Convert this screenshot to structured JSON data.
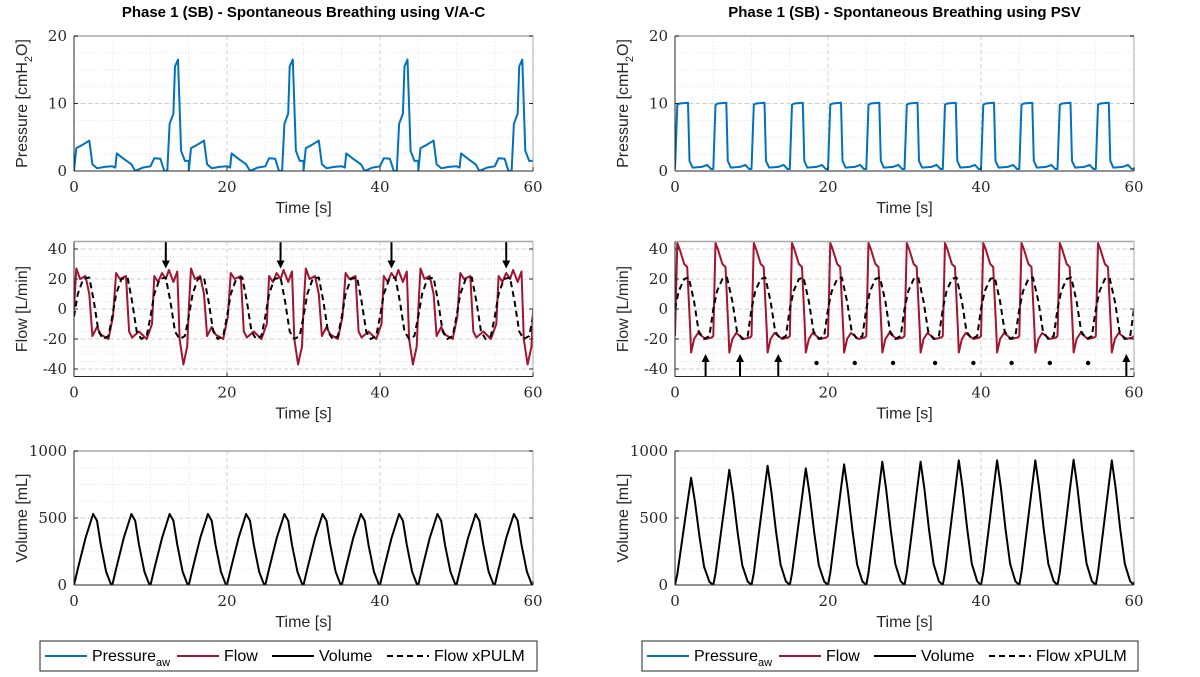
{
  "legend": [
    {
      "label": "Pressure",
      "sub": "aw",
      "color": "#0072BD",
      "dash": false
    },
    {
      "label": "Flow",
      "sub": "",
      "color": "#A2142F",
      "dash": false
    },
    {
      "label": "Volume",
      "sub": "",
      "color": "#000000",
      "dash": false
    },
    {
      "label": "Flow xPULM",
      "sub": "",
      "color": "#000000",
      "dash": true
    }
  ],
  "chart_data": [
    {
      "type": "line",
      "title": "Phase 1 (SB) - Spontaneous Breathing using V/A-C",
      "xlabel": "Time [s]",
      "ylabel": "Pressure [cmH",
      "ylabel_sub": "2",
      "ylabel_end": "O]",
      "xlim": [
        0,
        60
      ],
      "ylim": [
        0,
        20
      ],
      "xticks": [
        0,
        20,
        40,
        60
      ],
      "yticks": [
        0,
        10,
        20
      ],
      "grid": true,
      "series": [
        {
          "name": "Pressure_aw",
          "color": "#0072BD",
          "dash": false,
          "starts": [
            0,
            15,
            30,
            45
          ],
          "template": [
            [
              0,
              0
            ],
            [
              0.3,
              3.4
            ],
            [
              1,
              3.8
            ],
            [
              2,
              4.5
            ],
            [
              2.4,
              1
            ],
            [
              3,
              0.4
            ],
            [
              4,
              0.6
            ],
            [
              5,
              0.7
            ],
            [
              5.4,
              0.5
            ],
            [
              5.6,
              2.6
            ],
            [
              6.5,
              1.8
            ],
            [
              7.5,
              1
            ],
            [
              8,
              0
            ],
            [
              9,
              0.5
            ],
            [
              10,
              0.7
            ],
            [
              10.5,
              1.9
            ],
            [
              11.3,
              1.8
            ],
            [
              11.8,
              0
            ],
            [
              12.2,
              0
            ],
            [
              12.5,
              7
            ],
            [
              13,
              8.5
            ],
            [
              13.2,
              15.5
            ],
            [
              13.6,
              16.5
            ],
            [
              14,
              3
            ],
            [
              14.5,
              1.5
            ],
            [
              15,
              1.5
            ]
          ]
        }
      ],
      "annotations": []
    },
    {
      "type": "line",
      "title": "",
      "xlabel": "Time [s]",
      "ylabel": "Flow [L/min]",
      "ylabel_sub": "",
      "ylabel_end": "",
      "xlim": [
        0,
        60
      ],
      "ylim": [
        -45,
        45
      ],
      "xticks": [
        0,
        20,
        40,
        60
      ],
      "yticks": [
        -40,
        -20,
        0,
        20,
        40
      ],
      "grid": true,
      "series": [
        {
          "name": "Flow",
          "color": "#A2142F",
          "dash": false,
          "starts": [
            0,
            15,
            30,
            45
          ],
          "template": [
            [
              0,
              0
            ],
            [
              0.3,
              27
            ],
            [
              0.8,
              20
            ],
            [
              1.5,
              22
            ],
            [
              2,
              10
            ],
            [
              2.4,
              -18
            ],
            [
              3,
              -12
            ],
            [
              3.5,
              -17
            ],
            [
              4.5,
              -20
            ],
            [
              5.1,
              -5
            ],
            [
              5.5,
              24
            ],
            [
              6,
              20
            ],
            [
              6.8,
              22
            ],
            [
              7.2,
              -15
            ],
            [
              7.6,
              -19
            ],
            [
              8.5,
              -15
            ],
            [
              9.5,
              -20
            ],
            [
              10.2,
              -10
            ],
            [
              10.5,
              22
            ],
            [
              11,
              18
            ],
            [
              11.5,
              24
            ],
            [
              12,
              20
            ],
            [
              12.4,
              26
            ],
            [
              13,
              18
            ],
            [
              13.5,
              25
            ],
            [
              13.8,
              -20
            ],
            [
              14.3,
              -37
            ],
            [
              14.8,
              -25
            ],
            [
              15,
              0
            ]
          ]
        },
        {
          "name": "Flow xPULM",
          "color": "#000000",
          "dash": true,
          "starts": [
            0,
            5,
            10,
            15,
            20,
            25,
            30,
            35,
            40,
            45,
            50,
            55
          ],
          "template": [
            [
              0,
              -5
            ],
            [
              0.5,
              10
            ],
            [
              1.2,
              20
            ],
            [
              2,
              21
            ],
            [
              2.6,
              5
            ],
            [
              3.2,
              -15
            ],
            [
              3.8,
              -20
            ],
            [
              4.5,
              -18
            ],
            [
              5,
              -5
            ]
          ]
        }
      ],
      "annotations": [
        {
          "type": "arrow-down",
          "x": 12,
          "y_from": 45,
          "y_to": 27
        },
        {
          "type": "arrow-down",
          "x": 27,
          "y_from": 45,
          "y_to": 27
        },
        {
          "type": "arrow-down",
          "x": 41.5,
          "y_from": 45,
          "y_to": 27
        },
        {
          "type": "arrow-down",
          "x": 56.5,
          "y_from": 45,
          "y_to": 27
        }
      ]
    },
    {
      "type": "line",
      "title": "",
      "xlabel": "Time [s]",
      "ylabel": "Volume [mL]",
      "ylabel_sub": "",
      "ylabel_end": "",
      "xlim": [
        0,
        60
      ],
      "ylim": [
        0,
        1000
      ],
      "xticks": [
        0,
        20,
        40,
        60
      ],
      "yticks": [
        0,
        500,
        1000
      ],
      "grid": true,
      "series": [
        {
          "name": "Volume",
          "color": "#000000",
          "dash": false,
          "starts": [
            0,
            5,
            10,
            15,
            20,
            25,
            30,
            35,
            40,
            45,
            50,
            55
          ],
          "template": [
            [
              0,
              0
            ],
            [
              0.5,
              120
            ],
            [
              1.5,
              350
            ],
            [
              2.5,
              530
            ],
            [
              3,
              480
            ],
            [
              3.5,
              300
            ],
            [
              4.2,
              100
            ],
            [
              4.8,
              10
            ],
            [
              5,
              0
            ]
          ]
        }
      ],
      "annotations": []
    },
    {
      "type": "line",
      "title": "Phase 1 (SB) - Spontaneous Breathing using PSV",
      "xlabel": "Time [s]",
      "ylabel": "Pressure [cmH",
      "ylabel_sub": "2",
      "ylabel_end": "O]",
      "xlim": [
        0,
        60
      ],
      "ylim": [
        0,
        20
      ],
      "xticks": [
        0,
        20,
        40,
        60
      ],
      "yticks": [
        0,
        10,
        20
      ],
      "grid": true,
      "series": [
        {
          "name": "Pressure_aw",
          "color": "#0072BD",
          "dash": false,
          "starts": [
            0,
            5,
            10,
            15,
            20,
            25,
            30,
            35,
            40,
            45,
            50,
            55
          ],
          "template": [
            [
              0,
              0.3
            ],
            [
              0.3,
              9.8
            ],
            [
              0.6,
              10
            ],
            [
              1.7,
              10.1
            ],
            [
              1.9,
              1.5
            ],
            [
              2.3,
              0.5
            ],
            [
              3.5,
              0.6
            ],
            [
              4.2,
              0.9
            ],
            [
              4.7,
              0.3
            ],
            [
              5,
              0.3
            ]
          ]
        }
      ],
      "annotations": []
    },
    {
      "type": "line",
      "title": "",
      "xlabel": "Time [s]",
      "ylabel": "Flow [L/min]",
      "ylabel_sub": "",
      "ylabel_end": "",
      "xlim": [
        0,
        60
      ],
      "ylim": [
        -45,
        45
      ],
      "xticks": [
        0,
        20,
        40,
        60
      ],
      "yticks": [
        -40,
        -20,
        0,
        20,
        40
      ],
      "grid": true,
      "series": [
        {
          "name": "Flow",
          "color": "#A2142F",
          "dash": false,
          "starts": [
            0,
            5,
            10,
            15,
            20,
            25,
            30,
            35,
            40,
            45,
            50,
            55
          ],
          "template": [
            [
              0,
              -18
            ],
            [
              0.3,
              44
            ],
            [
              0.6,
              40
            ],
            [
              1.2,
              30
            ],
            [
              1.6,
              28
            ],
            [
              2,
              -15
            ],
            [
              2.1,
              -29
            ],
            [
              2.5,
              -20
            ],
            [
              3,
              -16
            ],
            [
              3.5,
              -18
            ],
            [
              4,
              -20
            ],
            [
              4.8,
              -19
            ],
            [
              5,
              -18
            ]
          ]
        },
        {
          "name": "Flow xPULM",
          "color": "#000000",
          "dash": true,
          "starts": [
            0,
            5,
            10,
            15,
            20,
            25,
            30,
            35,
            40,
            45,
            50,
            55
          ],
          "template": [
            [
              0,
              0
            ],
            [
              0.5,
              12
            ],
            [
              1.2,
              20
            ],
            [
              1.8,
              21
            ],
            [
              2.5,
              5
            ],
            [
              3.1,
              -15
            ],
            [
              3.8,
              -20
            ],
            [
              4.5,
              -18
            ],
            [
              5,
              0
            ]
          ]
        }
      ],
      "annotations": [
        {
          "type": "arrow-up",
          "x": 4,
          "y_from": -45,
          "y_to": -30
        },
        {
          "type": "arrow-up",
          "x": 8.5,
          "y_from": -45,
          "y_to": -30
        },
        {
          "type": "arrow-up",
          "x": 13.5,
          "y_from": -45,
          "y_to": -30
        },
        {
          "type": "arrow-up",
          "x": 59,
          "y_from": -45,
          "y_to": -30
        },
        {
          "type": "dot",
          "x": 18.5,
          "y": -36
        },
        {
          "type": "dot",
          "x": 23.5,
          "y": -36
        },
        {
          "type": "dot",
          "x": 28.5,
          "y": -36
        },
        {
          "type": "dot",
          "x": 34,
          "y": -36
        },
        {
          "type": "dot",
          "x": 39,
          "y": -36
        },
        {
          "type": "dot",
          "x": 44,
          "y": -36
        },
        {
          "type": "dot",
          "x": 49,
          "y": -36
        },
        {
          "type": "dot",
          "x": 54,
          "y": -36
        }
      ]
    },
    {
      "type": "line",
      "title": "",
      "xlabel": "Time [s]",
      "ylabel": "Volume [mL]",
      "ylabel_sub": "",
      "ylabel_end": "",
      "xlim": [
        0,
        60
      ],
      "ylim": [
        0,
        1000
      ],
      "xticks": [
        0,
        20,
        40,
        60
      ],
      "yticks": [
        0,
        500,
        1000
      ],
      "grid": true,
      "series": [
        {
          "name": "Volume",
          "color": "#000000",
          "dash": false,
          "starts": [
            0,
            5,
            10,
            15,
            20,
            25,
            30,
            35,
            40,
            45,
            50,
            55
          ],
          "scales": [
            0.8,
            0.86,
            0.89,
            0.87,
            0.9,
            0.92,
            0.92,
            0.93,
            0.93,
            0.93,
            0.935,
            0.93
          ],
          "template": [
            [
              0,
              0
            ],
            [
              0.3,
              100
            ],
            [
              1,
              450
            ],
            [
              1.6,
              750
            ],
            [
              2.1,
              1000
            ],
            [
              2.6,
              780
            ],
            [
              3.2,
              450
            ],
            [
              3.8,
              170
            ],
            [
              4.5,
              30
            ],
            [
              5,
              0
            ]
          ]
        }
      ],
      "annotations": []
    }
  ]
}
